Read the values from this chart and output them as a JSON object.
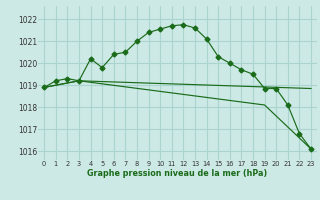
{
  "title": "Graphe pression niveau de la mer (hPa)",
  "bg_color": "#cce9e5",
  "grid_color": "#aad4cf",
  "line_color": "#1a6b1a",
  "x_ticks": [
    0,
    1,
    2,
    3,
    4,
    5,
    6,
    7,
    8,
    9,
    10,
    11,
    12,
    13,
    14,
    15,
    16,
    17,
    18,
    19,
    20,
    21,
    22,
    23
  ],
  "y_ticks": [
    1016,
    1017,
    1018,
    1019,
    1020,
    1021,
    1022
  ],
  "ylim": [
    1015.6,
    1022.6
  ],
  "xlim": [
    -0.5,
    23.5
  ],
  "series": [
    {
      "x": [
        0,
        1,
        2,
        3,
        4,
        5,
        6,
        7,
        8,
        9,
        10,
        11,
        12,
        13,
        14,
        15,
        16,
        17,
        18,
        19,
        20,
        21,
        22,
        23
      ],
      "y": [
        1018.9,
        1019.2,
        1019.3,
        1019.2,
        1020.2,
        1019.8,
        1020.4,
        1020.5,
        1021.0,
        1021.4,
        1021.55,
        1021.7,
        1021.75,
        1021.6,
        1021.1,
        1020.3,
        1020.0,
        1019.7,
        1019.5,
        1018.85,
        1018.85,
        1018.1,
        1016.8,
        1016.1
      ],
      "marker": "D",
      "marker_size": 2.5
    },
    {
      "x": [
        0,
        3,
        23
      ],
      "y": [
        1018.9,
        1019.2,
        1018.85
      ],
      "marker": null,
      "marker_size": 0
    },
    {
      "x": [
        0,
        3,
        19,
        23
      ],
      "y": [
        1018.9,
        1019.2,
        1018.1,
        1016.1
      ],
      "marker": null,
      "marker_size": 0
    }
  ]
}
